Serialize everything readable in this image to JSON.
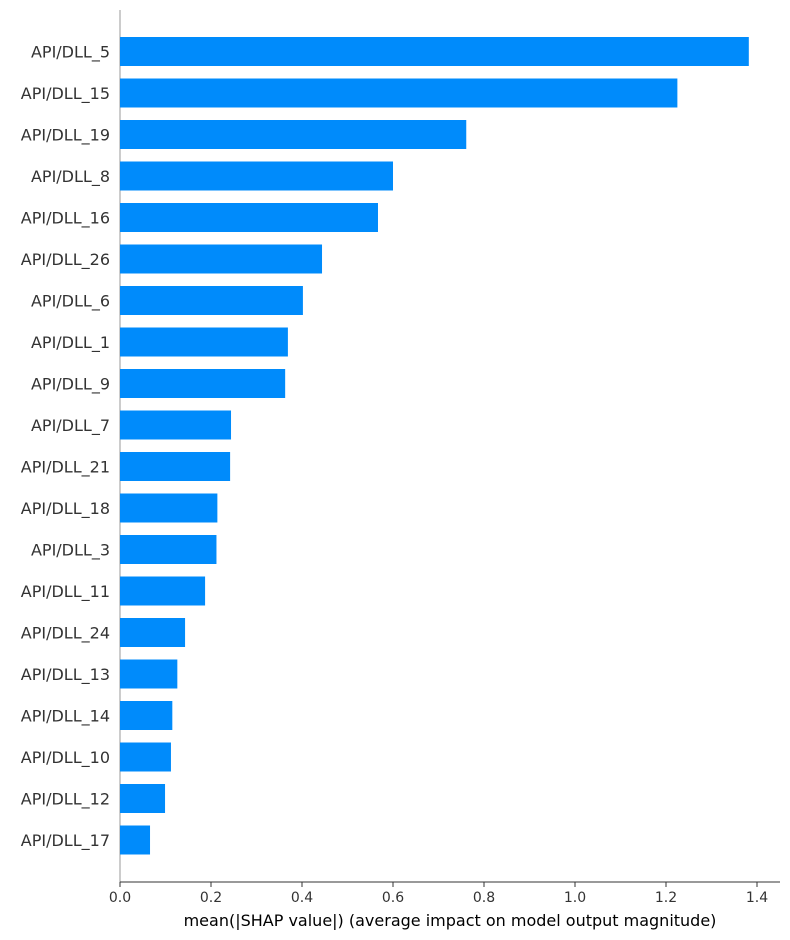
{
  "chart_data": {
    "type": "bar",
    "orientation": "horizontal",
    "categories": [
      "API/DLL_5",
      "API/DLL_15",
      "API/DLL_19",
      "API/DLL_8",
      "API/DLL_16",
      "API/DLL_26",
      "API/DLL_6",
      "API/DLL_1",
      "API/DLL_9",
      "API/DLL_7",
      "API/DLL_21",
      "API/DLL_18",
      "API/DLL_3",
      "API/DLL_11",
      "API/DLL_24",
      "API/DLL_13",
      "API/DLL_14",
      "API/DLL_10",
      "API/DLL_12",
      "API/DLL_17"
    ],
    "values": [
      1.382,
      1.225,
      0.761,
      0.6,
      0.567,
      0.444,
      0.402,
      0.369,
      0.363,
      0.244,
      0.242,
      0.214,
      0.212,
      0.187,
      0.143,
      0.126,
      0.115,
      0.112,
      0.099,
      0.066
    ],
    "xlabel": "mean(|SHAP value|) (average impact on model output magnitude)",
    "ylabel": "",
    "title": "",
    "xlim": [
      0,
      1.45
    ],
    "xticks": [
      0.0,
      0.2,
      0.4,
      0.6,
      0.8,
      1.0,
      1.2,
      1.4
    ],
    "xtick_labels": [
      "0.0",
      "0.2",
      "0.4",
      "0.6",
      "0.8",
      "1.0",
      "1.2",
      "1.4"
    ],
    "bar_color": "#008bfb",
    "axis_color": "#333333",
    "grid": false
  }
}
